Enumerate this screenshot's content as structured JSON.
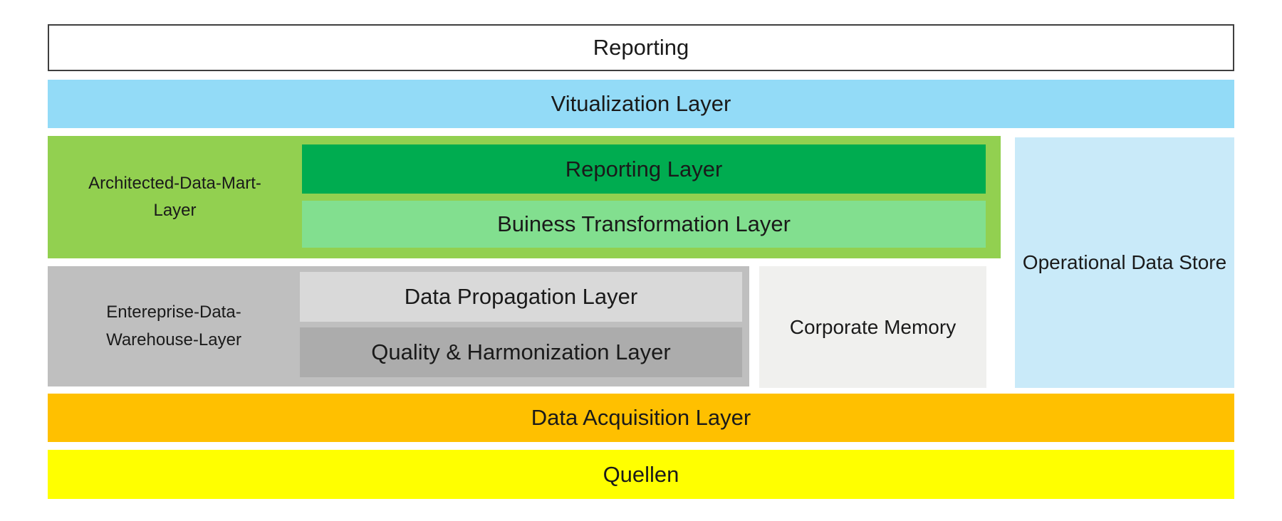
{
  "diagram": {
    "reporting_box": {
      "label": "Reporting",
      "background": "#FFFFFF",
      "border_color": "#3F3F3F"
    },
    "visualization_bar": {
      "label": "Vitualization Layer",
      "color": "#93DBF7"
    },
    "adm_container": {
      "label_line1": "Architected-Data-Mart-",
      "label_line2": "Layer",
      "color": "#92D050",
      "reporting_layer": {
        "label": "Reporting Layer",
        "color": "#00AC50"
      },
      "business_transformation_layer": {
        "label": "Buiness Transformation Layer",
        "color": "#82DF8F"
      }
    },
    "ods_box": {
      "label": "Operational Data Store",
      "color": "#C9EAF9"
    },
    "edw_container": {
      "label_line1": "Entereprise-Data-",
      "label_line2": "Warehouse-Layer",
      "color": "#BFBFBF",
      "data_propagation_layer": {
        "label": "Data Propagation Layer",
        "color": "#D9D9D9"
      },
      "quality_harmonization_layer": {
        "label": "Quality & Harmonization Layer",
        "color": "#ACACAC"
      }
    },
    "corporate_memory_box": {
      "label": "Corporate Memory",
      "color": "#F0F0EE"
    },
    "data_acquisition_bar": {
      "label": "Data Acquisition Layer",
      "color": "#FFC000"
    },
    "quellen_bar": {
      "label": "Quellen",
      "color": "#FFFF00"
    },
    "text_color": "#1A1A1A"
  }
}
